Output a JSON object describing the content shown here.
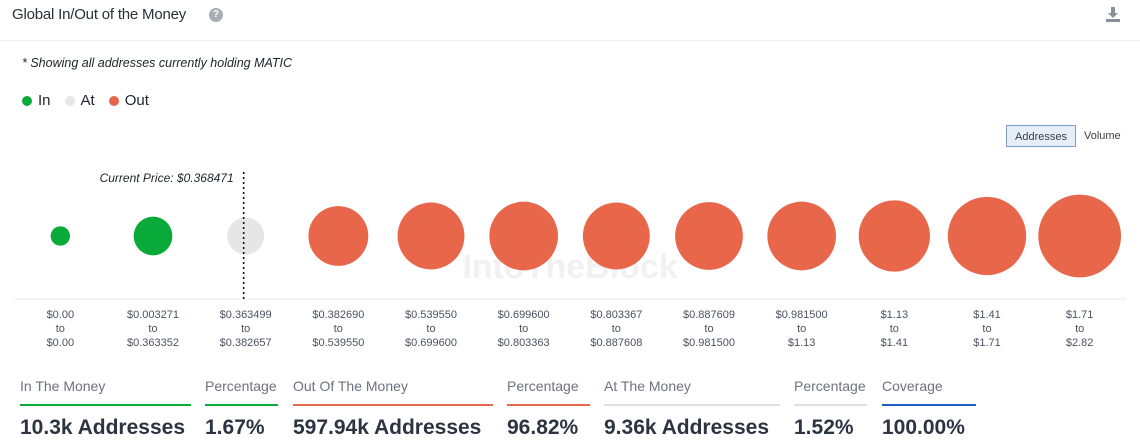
{
  "header": {
    "title": "Global In/Out of the Money",
    "help_icon": "question-icon",
    "download_icon": "download-icon"
  },
  "note": "* Showing all addresses currently holding MATIC",
  "legend": [
    {
      "label": "In",
      "color": "#0aaa3a"
    },
    {
      "label": "At",
      "color": "#e6e6e6"
    },
    {
      "label": "Out",
      "color": "#e8674a"
    }
  ],
  "toggle": {
    "addresses": "Addresses",
    "volume": "Volume"
  },
  "watermark": "IntoTheBlock",
  "chart_data": {
    "type": "bubble",
    "current_price_label": "Current Price: $0.368471",
    "current_price_bucket_index": 2,
    "buckets": [
      {
        "from": "$0.00",
        "to": "$0.00",
        "status": "in",
        "size": 0.22
      },
      {
        "from": "$0.003271",
        "to": "$0.363352",
        "status": "in",
        "size": 0.44
      },
      {
        "from": "$0.363499",
        "to": "$0.382657",
        "status": "at",
        "size": 0.42
      },
      {
        "from": "$0.382690",
        "to": "$0.539550",
        "status": "out",
        "size": 0.68
      },
      {
        "from": "$0.539550",
        "to": "$0.699600",
        "status": "out",
        "size": 0.76
      },
      {
        "from": "$0.699600",
        "to": "$0.803363",
        "status": "out",
        "size": 0.78
      },
      {
        "from": "$0.803367",
        "to": "$0.887608",
        "status": "out",
        "size": 0.76
      },
      {
        "from": "$0.887609",
        "to": "$0.981500",
        "status": "out",
        "size": 0.77
      },
      {
        "from": "$0.981500",
        "to": "$1.13",
        "status": "out",
        "size": 0.78
      },
      {
        "from": "$1.13",
        "to": "$1.41",
        "status": "out",
        "size": 0.81
      },
      {
        "from": "$1.41",
        "to": "$1.71",
        "status": "out",
        "size": 0.89
      },
      {
        "from": "$1.71",
        "to": "$2.82",
        "status": "out",
        "size": 0.94
      }
    ],
    "connector": "to",
    "colors": {
      "in": "#0aaa3a",
      "at": "#e6e6e6",
      "out": "#e8674a"
    }
  },
  "stats": [
    {
      "label": "In The Money",
      "value": "10.3k Addresses",
      "color": "#0aaa3a"
    },
    {
      "label": "Percentage",
      "value": "1.67%",
      "color": "#0aaa3a"
    },
    {
      "label": "Out Of The Money",
      "value": "597.94k Addresses",
      "color": "#e8674a"
    },
    {
      "label": "Percentage",
      "value": "96.82%",
      "color": "#e8674a"
    },
    {
      "label": "At The Money",
      "value": "9.36k Addresses",
      "color": "#e0e0e0"
    },
    {
      "label": "Percentage",
      "value": "1.52%",
      "color": "#e0e0e0"
    },
    {
      "label": "Coverage",
      "value": "100.00%",
      "color": "#1d5fc4"
    }
  ]
}
